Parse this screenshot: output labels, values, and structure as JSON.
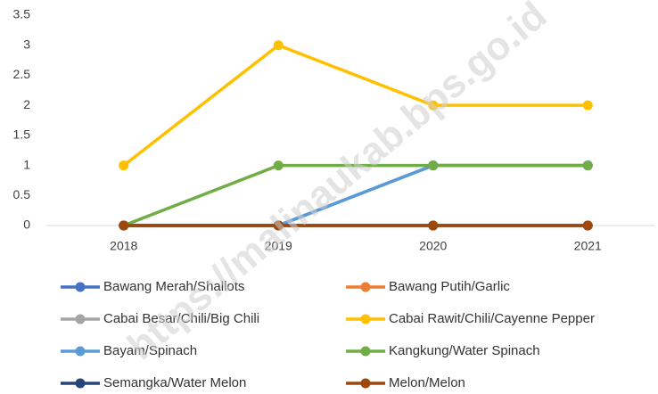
{
  "chart_data": {
    "type": "line",
    "categories": [
      "2018",
      "2019",
      "2020",
      "2021"
    ],
    "series": [
      {
        "name": "Bawang Merah/Shallots",
        "color": "#4472c4",
        "values": [
          0,
          0,
          1,
          1
        ]
      },
      {
        "name": "Bawang Putih/Garlic",
        "color": "#ed7d31",
        "values": [
          0,
          0,
          0,
          0
        ]
      },
      {
        "name": "Cabai Besar/Chili/Big Chili",
        "color": "#a5a5a5",
        "values": [
          0,
          0,
          0,
          0
        ]
      },
      {
        "name": "Cabai Rawit/Chili/Cayenne Pepper",
        "color": "#ffc000",
        "values": [
          1,
          3,
          2,
          2
        ]
      },
      {
        "name": "Bayam/Spinach",
        "color": "#5b9bd5",
        "values": [
          0,
          0,
          1,
          1
        ]
      },
      {
        "name": "Kangkung/Water Spinach",
        "color": "#70ad47",
        "values": [
          0,
          1,
          1,
          1
        ]
      },
      {
        "name": "Semangka/Water Melon",
        "color": "#264478",
        "values": [
          0,
          0,
          0,
          0
        ]
      },
      {
        "name": "Melon/Melon",
        "color": "#9e480e",
        "values": [
          0,
          0,
          0,
          0
        ]
      }
    ],
    "ylim": [
      0,
      3.5
    ],
    "yticks": [
      0,
      0.5,
      1,
      1.5,
      2,
      2.5,
      3,
      3.5
    ],
    "grid": false,
    "legend": "bottom",
    "watermark": "https://malinaukab.bps.go.id"
  }
}
